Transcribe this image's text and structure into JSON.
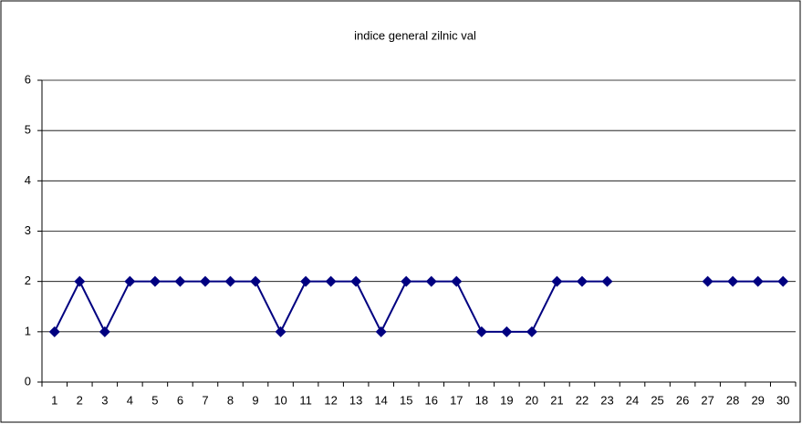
{
  "chart_data": {
    "type": "line",
    "title": "indice general zilnic val",
    "categories": [
      "1",
      "2",
      "3",
      "4",
      "5",
      "6",
      "7",
      "8",
      "9",
      "10",
      "11",
      "12",
      "13",
      "14",
      "15",
      "16",
      "17",
      "18",
      "19",
      "20",
      "21",
      "22",
      "23",
      "24",
      "25",
      "26",
      "27",
      "28",
      "29",
      "30"
    ],
    "values": [
      1,
      2,
      1,
      2,
      2,
      2,
      2,
      2,
      2,
      1,
      2,
      2,
      2,
      1,
      2,
      2,
      2,
      1,
      1,
      1,
      2,
      2,
      2,
      null,
      null,
      null,
      2,
      2,
      2,
      2
    ],
    "color": "#000080",
    "ylim": [
      0,
      6
    ],
    "yticks": [
      0,
      1,
      2,
      3,
      4,
      5,
      6
    ],
    "grid": true
  }
}
